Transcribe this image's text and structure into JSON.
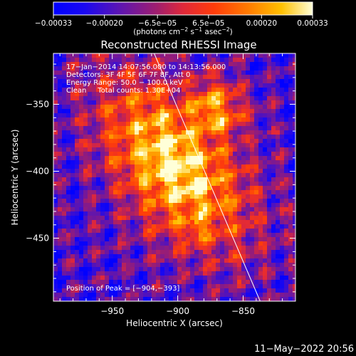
{
  "chart_data": {
    "type": "heatmap",
    "title": "Reconstructed RHESSI Image",
    "xlabel": "Heliocentric X (arcsec)",
    "ylabel": "Heliocentric Y (arcsec)",
    "xlim": [
      -995,
      -810
    ],
    "ylim": [
      -497,
      -312
    ],
    "xticks": [
      -950,
      -900,
      -850
    ],
    "xtick_labels": [
      "−950",
      "−900",
      "−850"
    ],
    "yticks": [
      -450,
      -400,
      -350
    ],
    "ytick_labels": [
      "−450",
      "−400",
      "−350"
    ],
    "colorbar": {
      "range": [
        -0.00033,
        0.00033
      ],
      "ticks": [
        -0.00033,
        -0.0002,
        -6.5e-05,
        6.5e-05,
        0.0002,
        0.00033
      ],
      "tick_labels": [
        "−0.00033",
        "−0.00020",
        "−6.5e−05",
        "6.5e−05",
        "0.00020",
        "0.00033"
      ],
      "units_main": "(photons cm",
      "units_sup1": "−2",
      "units_mid": " s",
      "units_sup2": "−1",
      "units_end": " asec",
      "units_sup3": "−2",
      "units_close": ")"
    },
    "info_lines": [
      "17−Jan−2014 14:07:56.000 to 14:13:56.000",
      "Detectors: 3F 4F 5F 6F 7F 8F, Att 0",
      "Energy Range: 50.0 − 100.0 keV",
      "Clean     Total counts: 1.30E+04"
    ],
    "peak_label": "Position of Peak = [−904,−393]",
    "peak": {
      "x": -904,
      "y": -393
    },
    "limb_line": [
      {
        "x": -918,
        "y": -312
      },
      {
        "x": -837,
        "y": -497
      }
    ],
    "timestamp": "11−May−2022 20:56",
    "colors": {
      "background": "#000000",
      "text": "#ffffff"
    }
  }
}
